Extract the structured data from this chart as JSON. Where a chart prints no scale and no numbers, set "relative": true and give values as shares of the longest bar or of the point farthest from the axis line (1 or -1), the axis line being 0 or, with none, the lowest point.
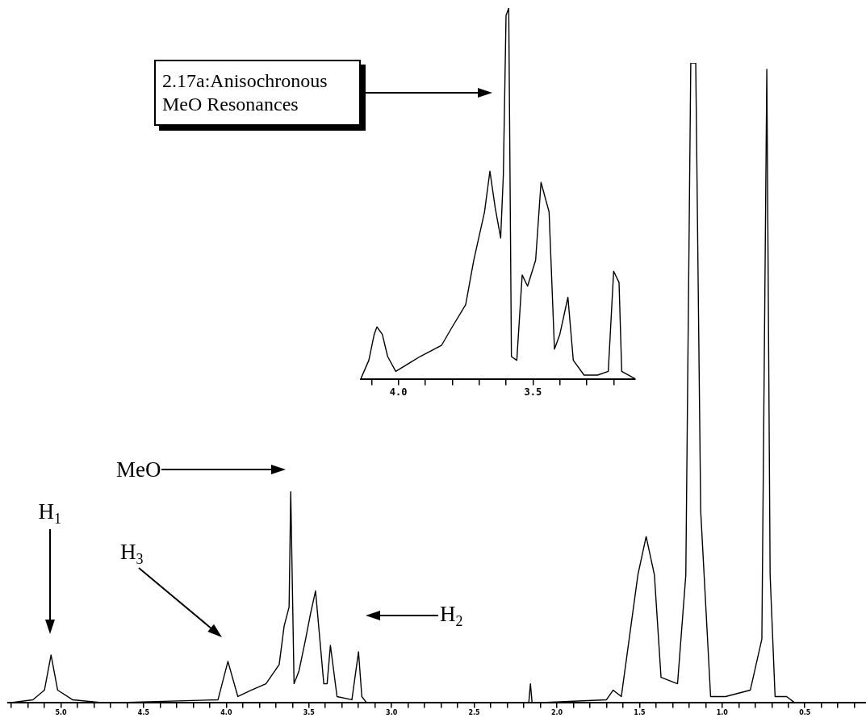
{
  "chart_data": [
    {
      "type": "line",
      "relative": true,
      "color": "#000000",
      "grid": false,
      "legend": false,
      "tick_labels": "x",
      "marker": "none",
      "x": [
        5.32,
        5.17,
        5.1,
        5.06,
        5.02,
        4.93,
        4.73,
        4.05,
        3.99,
        3.93,
        3.85,
        3.76,
        3.68,
        3.65,
        3.62,
        3.61,
        3.59,
        3.56,
        3.52,
        3.49,
        3.46,
        3.41,
        3.39,
        3.37,
        3.33,
        3.24,
        3.2,
        3.18,
        3.15,
        2.17,
        2.16,
        2.15,
        1.7,
        1.66,
        1.61,
        1.51,
        1.46,
        1.41,
        1.37,
        1.27,
        1.22,
        1.19,
        1.16,
        1.13,
        1.07,
        0.98,
        0.83,
        0.76,
        0.73,
        0.71,
        0.68,
        0.61,
        0.56,
        0.13
      ],
      "values": [
        0,
        0.005,
        0.02,
        0.075,
        0.02,
        0.005,
        0,
        0.005,
        0.065,
        0.01,
        0.02,
        0.03,
        0.06,
        0.12,
        0.15,
        0.33,
        0.03,
        0.05,
        0.1,
        0.14,
        0.175,
        0.03,
        0.03,
        0.09,
        0.01,
        0.005,
        0.08,
        0.01,
        0,
        0,
        0.03,
        0,
        0.005,
        0.02,
        0.01,
        0.2,
        0.26,
        0.2,
        0.04,
        0.03,
        0.2,
        1,
        1,
        0.3,
        0.01,
        0.01,
        0.02,
        0.1,
        0.99,
        0.2,
        0.01,
        0.01,
        0,
        0
      ],
      "xlim": [
        5.32,
        0.13
      ],
      "xticks": [
        {
          "value": 5.3,
          "label": null
        },
        {
          "value": 5.2,
          "label": null
        },
        {
          "value": 5.1,
          "label": null
        },
        {
          "value": 5.0,
          "label": "5.0"
        },
        {
          "value": 4.9,
          "label": null
        },
        {
          "value": 4.8,
          "label": null
        },
        {
          "value": 4.7,
          "label": null
        },
        {
          "value": 4.6,
          "label": null
        },
        {
          "value": 4.5,
          "label": "4.5"
        },
        {
          "value": 4.4,
          "label": null
        },
        {
          "value": 4.3,
          "label": null
        },
        {
          "value": 4.2,
          "label": null
        },
        {
          "value": 4.1,
          "label": null
        },
        {
          "value": 4.0,
          "label": "4.0"
        },
        {
          "value": 3.9,
          "label": null
        },
        {
          "value": 3.8,
          "label": null
        },
        {
          "value": 3.7,
          "label": null
        },
        {
          "value": 3.6,
          "label": null
        },
        {
          "value": 3.5,
          "label": "3.5"
        },
        {
          "value": 3.4,
          "label": null
        },
        {
          "value": 3.3,
          "label": null
        },
        {
          "value": 3.2,
          "label": null
        },
        {
          "value": 3.1,
          "label": null
        },
        {
          "value": 3.0,
          "label": "3.0"
        },
        {
          "value": 2.9,
          "label": null
        },
        {
          "value": 2.8,
          "label": null
        },
        {
          "value": 2.7,
          "label": null
        },
        {
          "value": 2.6,
          "label": null
        },
        {
          "value": 2.5,
          "label": "2.5"
        },
        {
          "value": 2.4,
          "label": null
        },
        {
          "value": 2.3,
          "label": null
        },
        {
          "value": 2.2,
          "label": null
        },
        {
          "value": 2.1,
          "label": null
        },
        {
          "value": 2.0,
          "label": "2.0"
        },
        {
          "value": 1.9,
          "label": null
        },
        {
          "value": 1.8,
          "label": null
        },
        {
          "value": 1.7,
          "label": null
        },
        {
          "value": 1.6,
          "label": null
        },
        {
          "value": 1.5,
          "label": "1.5"
        },
        {
          "value": 1.4,
          "label": null
        },
        {
          "value": 1.3,
          "label": null
        },
        {
          "value": 1.2,
          "label": null
        },
        {
          "value": 1.1,
          "label": null
        },
        {
          "value": 1.0,
          "label": "1.0"
        },
        {
          "value": 0.9,
          "label": null
        },
        {
          "value": 0.8,
          "label": null
        },
        {
          "value": 0.7,
          "label": null
        },
        {
          "value": 0.6,
          "label": null
        },
        {
          "value": 0.5,
          "label": "0.5"
        },
        {
          "value": 0.4,
          "label": null
        },
        {
          "value": 0.3,
          "label": null
        },
        {
          "value": 0.2,
          "label": null
        }
      ],
      "annotations": [
        "H$_{1}$",
        "MeO",
        "H$_{3}$",
        "H$_{2}$"
      ]
    },
    {
      "type": "line",
      "relative": true,
      "color": "#000000",
      "grid": false,
      "legend": false,
      "tick_labels": "x",
      "marker": "none",
      "x": [
        4.14,
        4.11,
        4.09,
        4.08,
        4.06,
        4.04,
        4.01,
        3.92,
        3.84,
        3.8,
        3.75,
        3.72,
        3.68,
        3.66,
        3.64,
        3.62,
        3.61,
        3.6,
        3.59,
        3.58,
        3.56,
        3.54,
        3.52,
        3.49,
        3.47,
        3.44,
        3.42,
        3.4,
        3.37,
        3.35,
        3.31,
        3.26,
        3.22,
        3.2,
        3.18,
        3.17,
        3.12
      ],
      "values": [
        0,
        0.05,
        0.12,
        0.14,
        0.12,
        0.06,
        0.02,
        0.06,
        0.09,
        0.14,
        0.2,
        0.32,
        0.45,
        0.56,
        0.46,
        0.38,
        0.55,
        0.98,
        1,
        0.06,
        0.05,
        0.28,
        0.25,
        0.32,
        0.53,
        0.45,
        0.08,
        0.12,
        0.22,
        0.05,
        0.01,
        0.01,
        0.02,
        0.29,
        0.26,
        0.02,
        0
      ],
      "xlim": [
        4.14,
        3.12
      ],
      "xticks": [
        {
          "value": 4.1,
          "label": null
        },
        {
          "value": 4.0,
          "label": "4.0"
        },
        {
          "value": 3.9,
          "label": null
        },
        {
          "value": 3.8,
          "label": null
        },
        {
          "value": 3.7,
          "label": null
        },
        {
          "value": 3.6,
          "label": null
        },
        {
          "value": 3.5,
          "label": "3.5"
        },
        {
          "value": 3.4,
          "label": null
        },
        {
          "value": 3.3,
          "label": null
        },
        {
          "value": 3.2,
          "label": null
        }
      ],
      "annotations": [
        "2.17a:Anisochronous MeO Resonances"
      ]
    }
  ]
}
